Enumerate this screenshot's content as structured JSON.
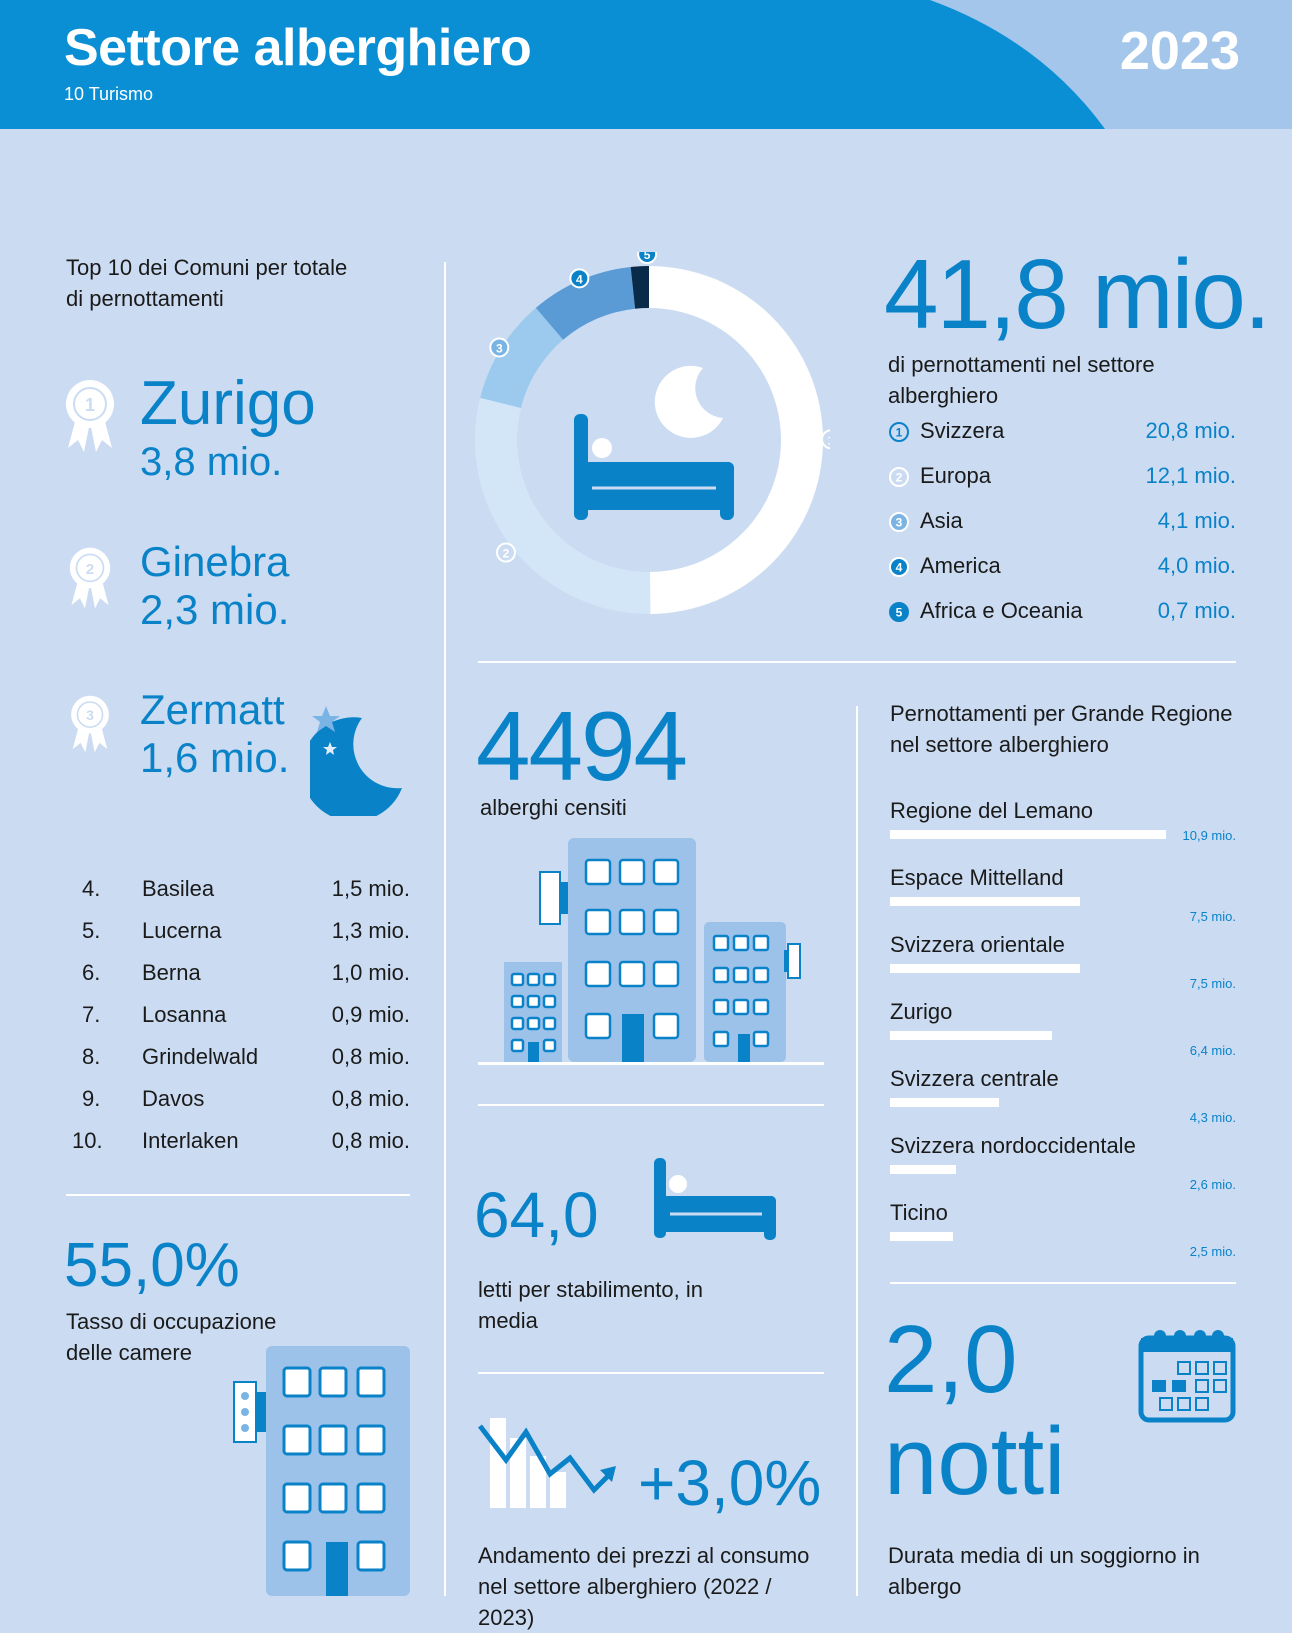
{
  "header": {
    "title": "Settore alberghiero",
    "subtitle": "10 Turismo",
    "year": "2023",
    "colors": {
      "primary": "#0a8fd5",
      "light": "#a3c6ea",
      "background": "#cbdcf2"
    }
  },
  "top_communes": {
    "title": "Top 10 dei Comuni per totale di pernottamenti",
    "podium": [
      {
        "rank": "1",
        "name": "Zurigo",
        "value": "3,8 mio."
      },
      {
        "rank": "2",
        "name": "Ginebra",
        "value": "2,3 mio."
      },
      {
        "rank": "3",
        "name": "Zermatt",
        "value": "1,6 mio."
      }
    ],
    "rest": [
      {
        "rank": "4.",
        "name": "Basilea",
        "value": "1,5 mio."
      },
      {
        "rank": "5.",
        "name": "Lucerna",
        "value": "1,3 mio."
      },
      {
        "rank": "6.",
        "name": "Berna",
        "value": "1,0 mio."
      },
      {
        "rank": "7.",
        "name": "Losanna",
        "value": "0,9 mio."
      },
      {
        "rank": "8.",
        "name": "Grindelwald",
        "value": "0,8 mio."
      },
      {
        "rank": "9.",
        "name": "Davos",
        "value": "0,8 mio."
      },
      {
        "rank": "10.",
        "name": "Interlaken",
        "value": "0,8 mio."
      }
    ]
  },
  "occupancy": {
    "value": "55,0%",
    "label": "Tasso di occupazione delle camere"
  },
  "overnight": {
    "total": "41,8 mio.",
    "label": "di pernottamenti nel settore alberghiero"
  },
  "hotels": {
    "value": "4494",
    "label": "alberghi censiti"
  },
  "beds": {
    "value": "64,0",
    "label": "letti per stabilimento, in media"
  },
  "prices": {
    "value": "+3,0%",
    "label": "Andamento dei prezzi al consumo nel settore alberghiero (2022 / 2023)"
  },
  "stay": {
    "value_line1": "2,0",
    "value_line2": "notti",
    "label": "Durata media di un soggiorno in albergo"
  },
  "chart_data": [
    {
      "type": "pie",
      "categories": [
        "Svizzera",
        "Europa",
        "Asia",
        "America",
        "Africa e Oceania"
      ],
      "markers": [
        "1",
        "2",
        "3",
        "4",
        "5"
      ],
      "values": [
        20.8,
        12.1,
        4.1,
        4.0,
        0.7
      ],
      "value_labels": [
        "20,8 mio.",
        "12,1 mio.",
        "4,1 mio.",
        "4,0 mio.",
        "0,7 mio."
      ],
      "colors": [
        "#ffffff",
        "#d3e6f8",
        "#9ccaee",
        "#5a9bd6",
        "#0a2a4a"
      ]
    },
    {
      "type": "bar",
      "title": "Pernottamenti per Grande Regione nel settore alberghiero",
      "categories": [
        "Regione del Lemano",
        "Espace Mittelland",
        "Svizzera orientale",
        "Zurigo",
        "Svizzera centrale",
        "Svizzera nordoccidentale",
        "Ticino"
      ],
      "values": [
        10.9,
        7.5,
        7.5,
        6.4,
        4.3,
        2.6,
        2.5
      ],
      "value_labels": [
        "10,9 mio.",
        "7,5 mio.",
        "7,5 mio.",
        "6,4 mio.",
        "4,3 mio.",
        "2,6  mio.",
        "2,5 mio."
      ],
      "xlim": [
        0,
        10.9
      ]
    }
  ]
}
